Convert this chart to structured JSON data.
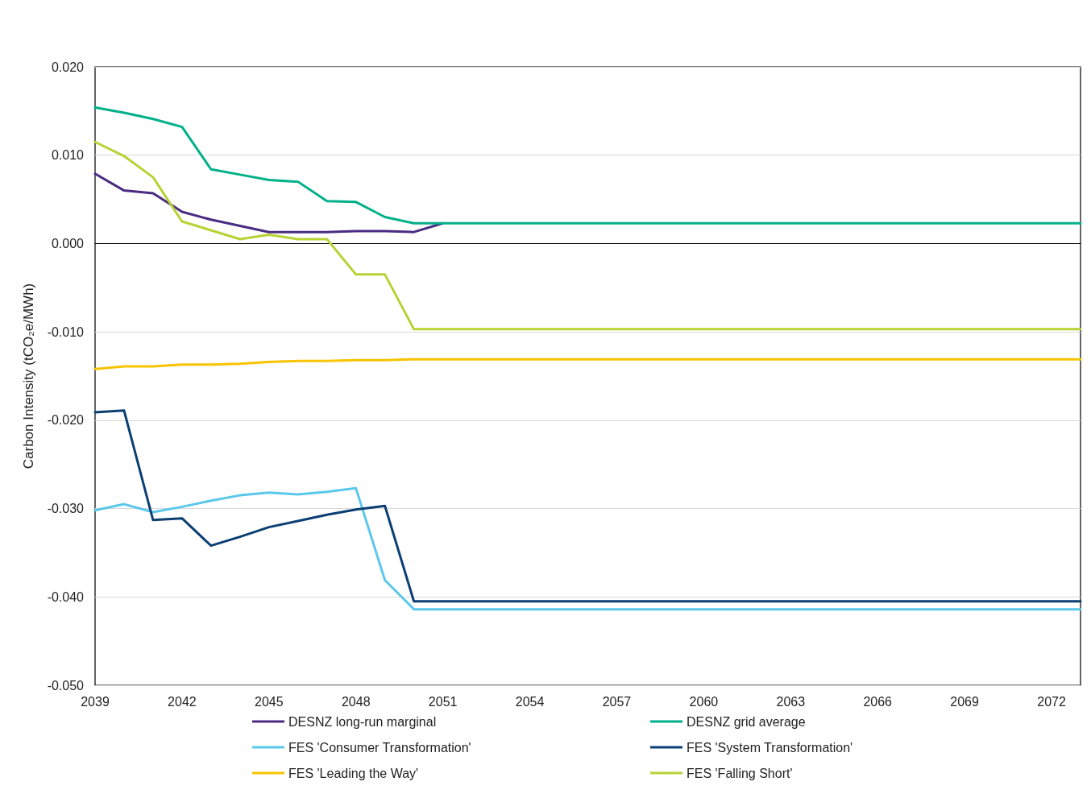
{
  "chart_data": {
    "type": "line",
    "ylabel": "Carbon Intensity (tCO₂e/MWh)",
    "xlim": [
      2039,
      2073
    ],
    "xticks": [
      2039,
      2042,
      2045,
      2048,
      2051,
      2054,
      2057,
      2060,
      2063,
      2066,
      2069,
      2072
    ],
    "ylim": [
      -0.05,
      0.02
    ],
    "yticks": [
      {
        "value": 0.02,
        "label": "0.020"
      },
      {
        "value": 0.01,
        "label": "0.010"
      },
      {
        "value": 0,
        "label": "0.000"
      },
      {
        "value": -0.01,
        "label": "-0.010"
      },
      {
        "value": -0.02,
        "label": "-0.020"
      },
      {
        "value": -0.03,
        "label": "-0.030"
      },
      {
        "value": -0.04,
        "label": "-0.040"
      },
      {
        "value": -0.05,
        "label": "-0.050"
      }
    ],
    "grid": "y",
    "legend": "bottom",
    "marker": "none",
    "line_style": "solid",
    "series": [
      {
        "name": "DESNZ long-run marginal",
        "color": "#4b2c83",
        "x": [
          2039,
          2040,
          2041,
          2042,
          2043,
          2044,
          2045,
          2046,
          2047,
          2048,
          2049,
          2050,
          2051
        ],
        "values": [
          0.0079,
          0.006,
          0.0057,
          0.0036,
          0.0027,
          0.002,
          0.0013,
          0.0013,
          0.0013,
          0.0014,
          0.0014,
          0.0013,
          0.0023
        ]
      },
      {
        "name": "DESNZ grid average",
        "color": "#00b08a",
        "x": [
          2039,
          2040,
          2041,
          2042,
          2043,
          2044,
          2045,
          2046,
          2047,
          2048,
          2049,
          2050,
          2073
        ],
        "values": [
          0.0154,
          0.0148,
          0.0141,
          0.0132,
          0.0084,
          0.0078,
          0.0072,
          0.007,
          0.0048,
          0.0047,
          0.003,
          0.0023,
          0.0023
        ]
      },
      {
        "name": "FES 'Consumer Transformation'",
        "color": "#5bc8ea",
        "x": [
          2039,
          2040,
          2041,
          2042,
          2043,
          2044,
          2045,
          2046,
          2047,
          2048,
          2049,
          2050,
          2073
        ],
        "values": [
          -0.0302,
          -0.0295,
          -0.0304,
          -0.0298,
          -0.0291,
          -0.0285,
          -0.0282,
          -0.0284,
          -0.0281,
          -0.0277,
          -0.0381,
          -0.0414,
          -0.0414
        ]
      },
      {
        "name": "FES 'System Transformation'",
        "color": "#0b3f73",
        "x": [
          2039,
          2040,
          2041,
          2042,
          2043,
          2044,
          2045,
          2046,
          2047,
          2048,
          2049,
          2050,
          2073
        ],
        "values": [
          -0.0191,
          -0.0189,
          -0.0313,
          -0.0311,
          -0.0342,
          -0.0332,
          -0.0321,
          -0.0314,
          -0.0307,
          -0.0301,
          -0.0297,
          -0.0405,
          -0.0405
        ]
      },
      {
        "name": "FES 'Leading the Way'",
        "color": "#f8c300",
        "x": [
          2039,
          2040,
          2041,
          2042,
          2043,
          2044,
          2045,
          2046,
          2047,
          2048,
          2049,
          2050,
          2073
        ],
        "values": [
          -0.0142,
          -0.0139,
          -0.0139,
          -0.0137,
          -0.0137,
          -0.0136,
          -0.0134,
          -0.0133,
          -0.0133,
          -0.0132,
          -0.0132,
          -0.0131,
          -0.0131
        ]
      },
      {
        "name": "FES 'Falling Short'",
        "color": "#b5d334",
        "x": [
          2039,
          2040,
          2041,
          2042,
          2043,
          2044,
          2045,
          2046,
          2047,
          2048,
          2049,
          2050,
          2073
        ],
        "values": [
          0.0115,
          0.0099,
          0.0075,
          0.0025,
          0.0015,
          0.0005,
          0.001,
          0.0005,
          0.0005,
          -0.0035,
          -0.0035,
          -0.0097,
          -0.0097
        ]
      }
    ]
  }
}
